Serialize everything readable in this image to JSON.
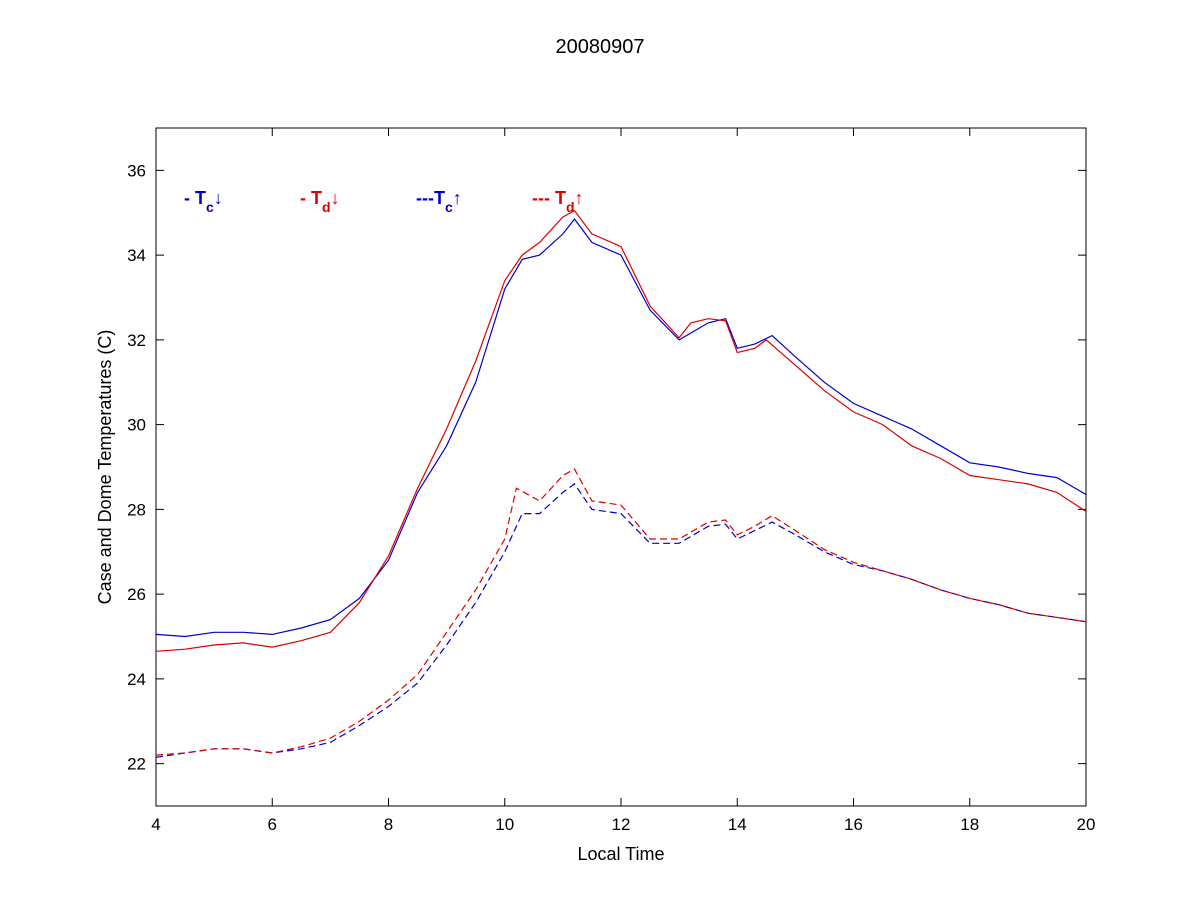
{
  "chart_data": {
    "type": "line",
    "title": "20080907",
    "xlabel": "Local Time",
    "ylabel": "Case and Dome Temperatures (C)",
    "xlim": [
      4,
      20
    ],
    "ylim": [
      21,
      37
    ],
    "xticks": [
      4,
      6,
      8,
      10,
      12,
      14,
      16,
      18,
      20
    ],
    "yticks": [
      22,
      24,
      26,
      28,
      30,
      32,
      34,
      36
    ],
    "grid": false,
    "legend_placement": "top-left inside plot, horizontal",
    "series": [
      {
        "legend_label": {
          "prefix": "- T",
          "sub": "c",
          "arrow": "↓"
        },
        "color": "#0000cc",
        "dash": "solid",
        "points": [
          [
            4,
            25.05
          ],
          [
            4.5,
            25.0
          ],
          [
            5,
            25.1
          ],
          [
            5.5,
            25.1
          ],
          [
            6,
            25.05
          ],
          [
            6.5,
            25.2
          ],
          [
            7,
            25.4
          ],
          [
            7.5,
            25.9
          ],
          [
            8,
            26.8
          ],
          [
            8.5,
            28.4
          ],
          [
            9,
            29.5
          ],
          [
            9.5,
            31.0
          ],
          [
            10,
            33.2
          ],
          [
            10.3,
            33.9
          ],
          [
            10.6,
            34.0
          ],
          [
            11,
            34.5
          ],
          [
            11.2,
            34.85
          ],
          [
            11.5,
            34.3
          ],
          [
            12,
            34.0
          ],
          [
            12.5,
            32.7
          ],
          [
            13,
            32.0
          ],
          [
            13.5,
            32.4
          ],
          [
            13.8,
            32.5
          ],
          [
            14,
            31.8
          ],
          [
            14.3,
            31.9
          ],
          [
            14.6,
            32.1
          ],
          [
            15,
            31.6
          ],
          [
            15.5,
            31.0
          ],
          [
            16,
            30.5
          ],
          [
            16.5,
            30.2
          ],
          [
            17,
            29.9
          ],
          [
            17.5,
            29.5
          ],
          [
            18,
            29.1
          ],
          [
            18.5,
            29.0
          ],
          [
            19,
            28.85
          ],
          [
            19.5,
            28.75
          ],
          [
            20,
            28.35
          ]
        ]
      },
      {
        "legend_label": {
          "prefix": "- T",
          "sub": "d",
          "arrow": "↓"
        },
        "color": "#dd0000",
        "dash": "solid",
        "points": [
          [
            4,
            24.65
          ],
          [
            4.5,
            24.7
          ],
          [
            5,
            24.8
          ],
          [
            5.5,
            24.85
          ],
          [
            6,
            24.75
          ],
          [
            6.5,
            24.9
          ],
          [
            7,
            25.1
          ],
          [
            7.5,
            25.8
          ],
          [
            8,
            26.9
          ],
          [
            8.5,
            28.5
          ],
          [
            9,
            29.9
          ],
          [
            9.5,
            31.5
          ],
          [
            10,
            33.4
          ],
          [
            10.3,
            34.0
          ],
          [
            10.6,
            34.3
          ],
          [
            11,
            34.9
          ],
          [
            11.2,
            35.05
          ],
          [
            11.5,
            34.5
          ],
          [
            12,
            34.2
          ],
          [
            12.5,
            32.8
          ],
          [
            13,
            32.05
          ],
          [
            13.2,
            32.4
          ],
          [
            13.5,
            32.5
          ],
          [
            13.8,
            32.45
          ],
          [
            14,
            31.7
          ],
          [
            14.3,
            31.8
          ],
          [
            14.5,
            32.0
          ],
          [
            15,
            31.4
          ],
          [
            15.5,
            30.8
          ],
          [
            16,
            30.3
          ],
          [
            16.5,
            30.0
          ],
          [
            17,
            29.5
          ],
          [
            17.5,
            29.2
          ],
          [
            18,
            28.8
          ],
          [
            18.5,
            28.7
          ],
          [
            19,
            28.6
          ],
          [
            19.5,
            28.4
          ],
          [
            20,
            27.95
          ]
        ]
      },
      {
        "legend_label": {
          "prefix": "---T",
          "sub": "c",
          "arrow": "↑"
        },
        "color": "#0000cc",
        "dash": "dashed",
        "points": [
          [
            4,
            22.15
          ],
          [
            4.5,
            22.25
          ],
          [
            5,
            22.35
          ],
          [
            5.5,
            22.35
          ],
          [
            6,
            22.25
          ],
          [
            6.5,
            22.35
          ],
          [
            7,
            22.5
          ],
          [
            7.5,
            22.9
          ],
          [
            8,
            23.35
          ],
          [
            8.5,
            23.9
          ],
          [
            9,
            24.8
          ],
          [
            9.5,
            25.8
          ],
          [
            10,
            27.0
          ],
          [
            10.3,
            27.9
          ],
          [
            10.6,
            27.9
          ],
          [
            11,
            28.4
          ],
          [
            11.2,
            28.6
          ],
          [
            11.5,
            28.0
          ],
          [
            12,
            27.9
          ],
          [
            12.5,
            27.2
          ],
          [
            13,
            27.2
          ],
          [
            13.5,
            27.6
          ],
          [
            13.8,
            27.65
          ],
          [
            14,
            27.3
          ],
          [
            14.3,
            27.5
          ],
          [
            14.6,
            27.7
          ],
          [
            15,
            27.4
          ],
          [
            15.5,
            27.0
          ],
          [
            16,
            26.7
          ],
          [
            16.5,
            26.55
          ],
          [
            17,
            26.35
          ],
          [
            17.5,
            26.1
          ],
          [
            18,
            25.9
          ],
          [
            18.5,
            25.75
          ],
          [
            19,
            25.55
          ],
          [
            19.5,
            25.45
          ],
          [
            20,
            25.35
          ]
        ]
      },
      {
        "legend_label": {
          "prefix": "--- T",
          "sub": "d",
          "arrow": "↑"
        },
        "color": "#dd0000",
        "dash": "dashed",
        "points": [
          [
            4,
            22.2
          ],
          [
            4.5,
            22.25
          ],
          [
            5,
            22.35
          ],
          [
            5.5,
            22.35
          ],
          [
            6,
            22.25
          ],
          [
            6.5,
            22.4
          ],
          [
            7,
            22.6
          ],
          [
            7.5,
            23.0
          ],
          [
            8,
            23.5
          ],
          [
            8.5,
            24.1
          ],
          [
            9,
            25.1
          ],
          [
            9.5,
            26.1
          ],
          [
            10,
            27.3
          ],
          [
            10.2,
            28.5
          ],
          [
            10.6,
            28.2
          ],
          [
            11,
            28.8
          ],
          [
            11.2,
            28.95
          ],
          [
            11.5,
            28.2
          ],
          [
            12,
            28.1
          ],
          [
            12.5,
            27.3
          ],
          [
            13,
            27.3
          ],
          [
            13.5,
            27.7
          ],
          [
            13.8,
            27.75
          ],
          [
            14,
            27.4
          ],
          [
            14.3,
            27.6
          ],
          [
            14.6,
            27.85
          ],
          [
            15,
            27.5
          ],
          [
            15.5,
            27.05
          ],
          [
            16,
            26.75
          ],
          [
            16.5,
            26.55
          ],
          [
            17,
            26.35
          ],
          [
            17.5,
            26.1
          ],
          [
            18,
            25.9
          ],
          [
            18.5,
            25.75
          ],
          [
            19,
            25.55
          ],
          [
            19.5,
            25.45
          ],
          [
            20,
            25.35
          ]
        ]
      }
    ]
  }
}
